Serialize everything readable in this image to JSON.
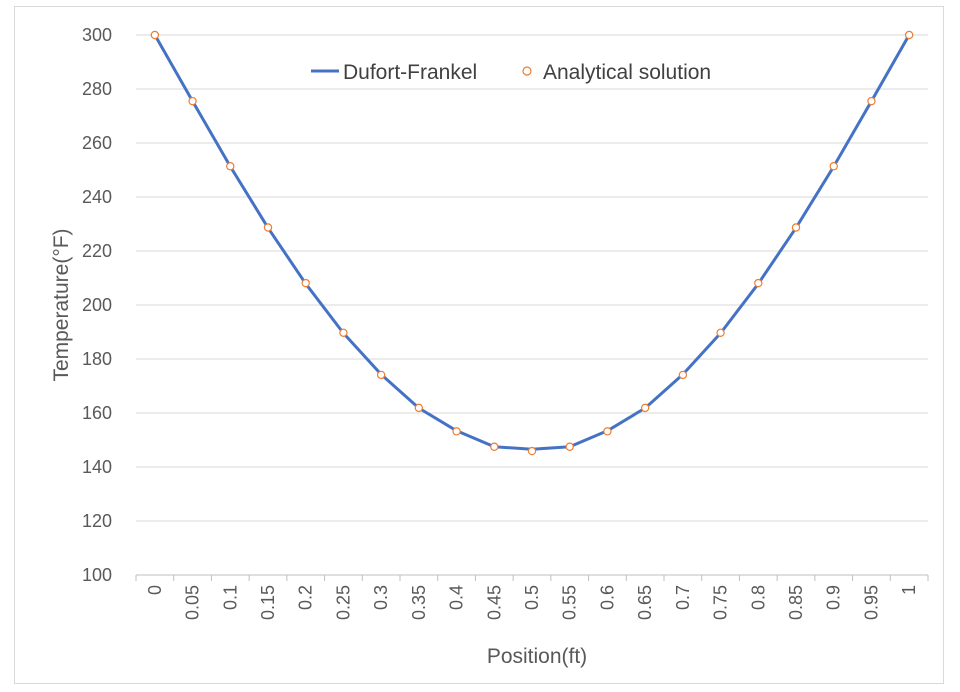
{
  "chart_data": {
    "type": "line",
    "title": "",
    "xlabel": "Position(ft)",
    "ylabel": "Temperature(°F)",
    "ylim": [
      100,
      300
    ],
    "yticks": [
      "100",
      "120",
      "140",
      "160",
      "180",
      "200",
      "220",
      "240",
      "260",
      "280",
      "300"
    ],
    "categories": [
      "0",
      "0.05",
      "0.1",
      "0.15",
      "0.2",
      "0.25",
      "0.3",
      "0.35",
      "0.4",
      "0.45",
      "0.5",
      "0.55",
      "0.6",
      "0.65",
      "0.7",
      "0.75",
      "0.8",
      "0.85",
      "0.9",
      "0.95",
      "1"
    ],
    "grid": "horizontal",
    "legend_position": "top",
    "series": [
      {
        "name": "Dufort-Frankel",
        "style": "line",
        "color": "#4472C4",
        "values": [
          300,
          275.5,
          251.3,
          228.6,
          207.9,
          189.6,
          174.3,
          161.8,
          153.4,
          147.5,
          146.6,
          147.5,
          153.4,
          161.8,
          174.3,
          189.6,
          207.9,
          228.6,
          251.3,
          275.5,
          300
        ]
      },
      {
        "name": "Analytical solution",
        "style": "marker",
        "color": "#ED7D31",
        "values": [
          300,
          275.5,
          251.4,
          228.7,
          208.1,
          189.7,
          174.1,
          161.9,
          153.2,
          147.5,
          145.9,
          147.5,
          153.2,
          161.9,
          174.1,
          189.7,
          208.1,
          228.7,
          251.4,
          275.5,
          300
        ]
      }
    ]
  }
}
